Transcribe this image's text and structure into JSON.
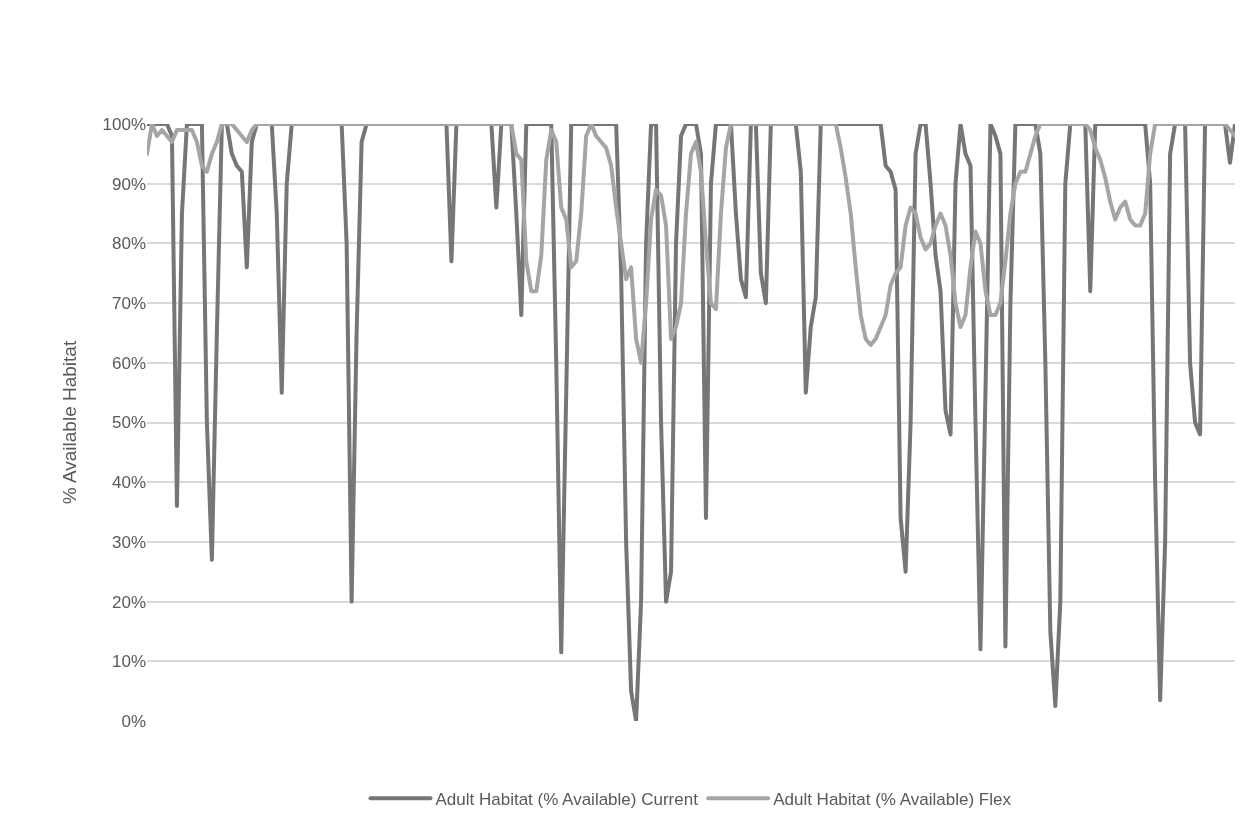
{
  "chart_data": {
    "type": "line",
    "ylabel": "% Available Habitat",
    "categories": [
      null,
      null,
      null,
      null,
      null,
      null,
      null,
      null,
      null,
      null,
      null,
      null,
      null,
      null,
      null,
      null,
      null,
      null,
      null,
      null,
      null,
      null,
      null,
      null,
      null,
      null,
      null,
      null,
      null,
      null,
      null,
      null,
      null,
      null,
      null,
      null,
      null,
      null,
      null,
      null,
      null,
      null,
      null,
      null,
      null,
      null,
      null,
      null,
      null,
      null,
      null,
      null,
      null,
      null,
      null,
      null,
      null,
      null,
      null,
      null,
      null,
      null,
      null,
      null,
      null,
      null,
      null,
      null,
      null,
      null,
      null,
      null,
      null,
      null,
      null,
      null,
      null,
      null,
      null,
      null,
      null,
      null,
      null,
      null,
      null,
      null,
      null,
      null,
      null,
      null,
      null,
      null,
      null,
      null,
      null,
      null,
      null,
      null,
      null,
      null,
      null,
      null,
      null,
      null,
      null,
      null,
      null,
      null,
      null,
      null,
      null,
      null,
      null,
      null,
      null,
      null,
      null,
      null,
      null,
      null,
      null,
      null,
      null,
      null,
      null,
      null,
      null,
      null,
      null,
      null,
      null,
      null,
      null,
      null,
      null,
      null,
      null,
      null,
      null,
      null,
      null,
      null,
      null,
      null,
      null,
      null,
      null,
      null,
      null,
      null,
      null,
      null,
      null,
      null,
      null,
      null,
      null,
      null,
      null,
      null,
      null,
      null,
      null,
      null,
      null,
      null,
      null,
      null,
      null,
      null,
      null,
      null,
      null,
      null,
      null,
      null,
      null,
      null,
      null,
      null,
      null,
      null,
      null,
      null,
      null,
      null,
      null,
      null,
      null,
      null,
      null,
      null,
      null,
      null,
      null,
      null,
      null,
      null,
      null,
      null,
      null,
      null,
      null,
      null,
      null,
      null,
      null,
      null,
      null,
      null,
      null,
      null,
      null,
      null,
      null,
      null,
      null,
      null,
      null
    ],
    "series": [
      {
        "name": "Adult Habitat (% Available) Current",
        "color": "#767676",
        "values": [
          100,
          100,
          100,
          100,
          100,
          98,
          36,
          85,
          100,
          100,
          100,
          100,
          50,
          27,
          65,
          100,
          100,
          95,
          93,
          92,
          76,
          97,
          100,
          100,
          100,
          100,
          85,
          55,
          90,
          100,
          100,
          100,
          100,
          100,
          100,
          100,
          100,
          100,
          100,
          100,
          80,
          20,
          65,
          97,
          100,
          100,
          100,
          100,
          100,
          100,
          100,
          100,
          100,
          100,
          100,
          100,
          100,
          100,
          100,
          100,
          100,
          77,
          100,
          100,
          100,
          100,
          100,
          100,
          100,
          100,
          86,
          100,
          100,
          100,
          85,
          68,
          100,
          100,
          100,
          100,
          100,
          100,
          60,
          11.5,
          55,
          100,
          100,
          100,
          100,
          100,
          100,
          100,
          100,
          100,
          100,
          75,
          30,
          5,
          0,
          20,
          80,
          100,
          100,
          50,
          20,
          25,
          80,
          98,
          100,
          100,
          100,
          95,
          34,
          90,
          100,
          100,
          100,
          100,
          85,
          74,
          71,
          100,
          100,
          75,
          70,
          100,
          100,
          100,
          100,
          100,
          100,
          92,
          55,
          66,
          71,
          100,
          100,
          100,
          100,
          100,
          100,
          100,
          100,
          100,
          100,
          100,
          100,
          100,
          93,
          92,
          89,
          34,
          25,
          50,
          95,
          100,
          100,
          90,
          78,
          72,
          52,
          48,
          90,
          100,
          95,
          93,
          50,
          12,
          55,
          100,
          98,
          95,
          12.5,
          70,
          100,
          100,
          100,
          100,
          100,
          95,
          60,
          15,
          2.5,
          20,
          90,
          100,
          100,
          100,
          100,
          72,
          100,
          100,
          100,
          100,
          100,
          100,
          100,
          100,
          100,
          100,
          100,
          90,
          40,
          3.5,
          30,
          95,
          100,
          100,
          100,
          60,
          50,
          48,
          100,
          100,
          100,
          100,
          100,
          93.5,
          100
        ]
      },
      {
        "name": "Adult Habitat (% Available) Flex",
        "color": "#a5a5a5",
        "values": [
          95,
          100,
          98,
          99,
          98,
          97,
          99,
          99,
          99,
          99,
          97,
          93,
          92,
          95,
          97,
          100,
          100,
          100,
          99,
          98,
          97,
          99,
          100,
          100,
          100,
          100,
          100,
          100,
          100,
          100,
          100,
          100,
          100,
          100,
          100,
          100,
          100,
          100,
          100,
          100,
          100,
          100,
          100,
          100,
          100,
          100,
          100,
          100,
          100,
          100,
          100,
          100,
          100,
          100,
          100,
          100,
          100,
          100,
          100,
          100,
          100,
          100,
          100,
          100,
          100,
          100,
          100,
          100,
          100,
          100,
          100,
          100,
          100,
          100,
          95,
          94,
          77,
          72,
          72,
          78,
          94,
          99,
          97,
          86,
          84,
          76,
          77,
          85,
          98,
          100,
          98,
          97,
          96,
          93,
          86,
          80,
          74,
          76,
          64,
          60,
          70,
          84,
          89,
          88,
          83,
          64,
          66,
          70,
          85,
          95,
          97,
          92,
          80,
          70,
          69,
          85,
          96,
          100,
          100,
          100,
          100,
          100,
          100,
          100,
          100,
          100,
          100,
          100,
          100,
          100,
          100,
          100,
          100,
          100,
          100,
          100,
          100,
          100,
          100,
          96,
          91,
          85,
          76,
          68,
          64,
          63,
          64,
          66,
          68,
          73,
          75,
          76,
          83,
          86,
          85,
          81,
          79,
          80,
          83,
          85,
          83,
          78,
          70,
          66,
          68,
          76,
          82,
          80,
          72,
          68,
          68,
          70,
          77,
          85,
          90,
          92,
          92,
          95,
          98,
          100,
          100,
          100,
          100,
          100,
          100,
          100,
          100,
          100,
          100,
          99,
          96,
          94,
          91,
          87,
          84,
          86,
          87,
          84,
          83,
          83,
          85,
          95,
          100,
          100,
          100,
          100,
          100,
          100,
          100,
          100,
          100,
          100,
          100,
          100,
          100,
          100,
          100,
          99,
          98
        ]
      }
    ],
    "ylim": [
      0,
      100
    ],
    "yticks": [
      {
        "value": 0,
        "label": "0%"
      },
      {
        "value": 10,
        "label": "10%"
      },
      {
        "value": 20,
        "label": "20%"
      },
      {
        "value": 30,
        "label": "30%"
      },
      {
        "value": 40,
        "label": "40%"
      },
      {
        "value": 50,
        "label": "50%"
      },
      {
        "value": 60,
        "label": "60%"
      },
      {
        "value": 70,
        "label": "70%"
      },
      {
        "value": 80,
        "label": "80%"
      },
      {
        "value": 90,
        "label": "90%"
      },
      {
        "value": 100,
        "label": "100%"
      }
    ],
    "grid": "y",
    "legend": "bottom",
    "marker": "none",
    "line_style": "solid",
    "tick_labels": "y"
  }
}
